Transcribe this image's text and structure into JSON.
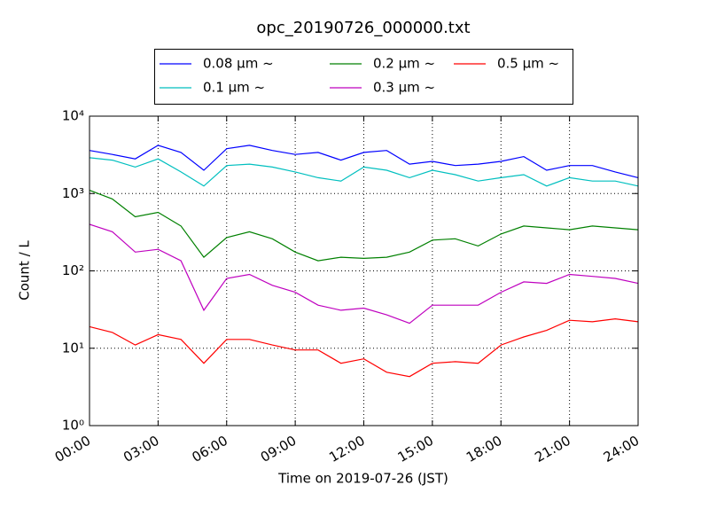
{
  "chart_data": {
    "type": "line",
    "title": "opc_20190726_000000.txt",
    "xlabel": "Time on 2019-07-26 (JST)",
    "ylabel": "Count / L",
    "log_y": true,
    "grid": true,
    "legend": "top",
    "x": [
      0,
      1,
      2,
      3,
      4,
      5,
      6,
      7,
      8,
      9,
      10,
      11,
      12,
      13,
      14,
      15,
      16,
      17,
      18,
      19,
      20,
      21,
      22,
      23,
      24
    ],
    "xlim": [
      0,
      24
    ],
    "xticks": [
      {
        "value": 0,
        "label": "00:00"
      },
      {
        "value": 3,
        "label": "03:00"
      },
      {
        "value": 6,
        "label": "06:00"
      },
      {
        "value": 9,
        "label": "09:00"
      },
      {
        "value": 12,
        "label": "12:00"
      },
      {
        "value": 15,
        "label": "15:00"
      },
      {
        "value": 18,
        "label": "18:00"
      },
      {
        "value": 21,
        "label": "21:00"
      },
      {
        "value": 24,
        "label": "24:00"
      }
    ],
    "ylim": [
      1,
      10000
    ],
    "yticks": [
      {
        "value": 1,
        "label": "10⁰"
      },
      {
        "value": 10,
        "label": "10¹"
      },
      {
        "value": 100,
        "label": "10²"
      },
      {
        "value": 1000,
        "label": "10³"
      },
      {
        "value": 10000,
        "label": "10⁴"
      }
    ],
    "series": [
      {
        "name": "0.08 μm ~",
        "color": "#0000ff",
        "values": [
          3600,
          3200,
          2800,
          4200,
          3400,
          2000,
          3800,
          4200,
          3600,
          3200,
          3400,
          2700,
          3400,
          3600,
          2400,
          2600,
          2300,
          2400,
          2600,
          3000,
          2000,
          2300,
          2300,
          1900,
          1600
        ]
      },
      {
        "name": "0.1 μm ~",
        "color": "#00bfbf",
        "values": [
          2900,
          2700,
          2200,
          2800,
          1900,
          1250,
          2300,
          2400,
          2200,
          1900,
          1600,
          1450,
          2200,
          2000,
          1600,
          2000,
          1750,
          1450,
          1600,
          1750,
          1250,
          1600,
          1450,
          1450,
          1250
        ]
      },
      {
        "name": "0.2 μm ~",
        "color": "#008000",
        "values": [
          1100,
          850,
          500,
          570,
          380,
          150,
          270,
          320,
          260,
          175,
          135,
          150,
          145,
          150,
          175,
          250,
          260,
          210,
          300,
          380,
          360,
          340,
          380,
          360,
          340
        ]
      },
      {
        "name": "0.3 μm ~",
        "color": "#bf00bf",
        "values": [
          400,
          320,
          175,
          190,
          135,
          31,
          80,
          90,
          65,
          53,
          36,
          31,
          33,
          27,
          21,
          36,
          36,
          36,
          53,
          72,
          69,
          90,
          85,
          80,
          69
        ]
      },
      {
        "name": "0.5 μm ~",
        "color": "#ff0000",
        "values": [
          19,
          16,
          11,
          15,
          13,
          6.4,
          13,
          13,
          11,
          9.5,
          9.5,
          6.4,
          7.3,
          4.9,
          4.3,
          6.4,
          6.7,
          6.4,
          11,
          14,
          17,
          23,
          22,
          24,
          22
        ]
      }
    ]
  }
}
